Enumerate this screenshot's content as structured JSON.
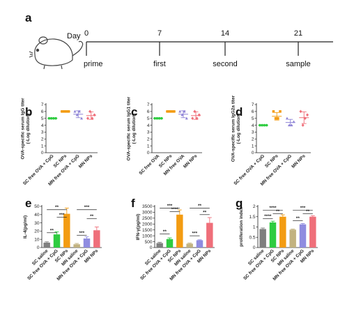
{
  "timeline": {
    "day_label": "Day",
    "points": [
      {
        "day": "0",
        "event": "prime"
      },
      {
        "day": "7",
        "event": "first"
      },
      {
        "day": "14",
        "event": "second"
      },
      {
        "day": "21",
        "event": "sample"
      }
    ]
  },
  "panel_letters": [
    "a",
    "b",
    "c",
    "d",
    "e",
    "f",
    "g"
  ],
  "colors": {
    "green": "#2ecc40",
    "orange": "#f39c12",
    "purple": "#8e83d6",
    "pink": "#ef6f7a",
    "gray": "#7f7f7f",
    "khaki": "#c2b280",
    "light_purple": "#8f8ce0"
  },
  "chart_data": [
    {
      "panel": "b",
      "type": "scatter",
      "ylabel": "OVA-specific serum IgG titer\n(-Log dilution)",
      "ylim": [
        0,
        7
      ],
      "yticks": [
        0,
        1,
        2,
        3,
        4,
        5,
        6,
        7
      ],
      "categories": [
        "SC free OVA + CpG",
        "SC NPs",
        "MN free OVA + CpG",
        "MN NPs"
      ],
      "series": [
        {
          "points": [
            5,
            5,
            5,
            5
          ],
          "mean": 5.0,
          "sd": 0.0
        },
        {
          "points": [
            6,
            6,
            6,
            6
          ],
          "mean": 6.0,
          "sd": 0.0
        },
        {
          "points": [
            6,
            5.5,
            6,
            5
          ],
          "mean": 5.6,
          "sd": 0.5
        },
        {
          "points": [
            5,
            6,
            5,
            5.5
          ],
          "mean": 5.4,
          "sd": 0.55
        }
      ]
    },
    {
      "panel": "c",
      "type": "scatter",
      "ylabel": "OVA-specific serum IgG1 titer\n(-Log dilution)",
      "ylim": [
        0,
        7
      ],
      "yticks": [
        0,
        1,
        2,
        3,
        4,
        5,
        6,
        7
      ],
      "categories": [
        "SC free OVA",
        "SC NPs",
        "MN free OVA",
        "MN NPs"
      ],
      "series": [
        {
          "points": [
            5,
            5,
            5,
            5
          ],
          "mean": 5.0,
          "sd": 0.0
        },
        {
          "points": [
            6,
            6,
            6,
            6
          ],
          "mean": 6.0,
          "sd": 0.0
        },
        {
          "points": [
            6,
            5.5,
            6,
            5
          ],
          "mean": 5.6,
          "sd": 0.5
        },
        {
          "points": [
            5,
            6,
            5,
            5.5
          ],
          "mean": 5.4,
          "sd": 0.55
        }
      ]
    },
    {
      "panel": "d",
      "type": "scatter",
      "ylabel": "OVA-specific serum IgG2a titer\n(-Log dilution)",
      "ylim": [
        0,
        7
      ],
      "yticks": [
        0,
        1,
        2,
        3,
        4,
        5,
        6,
        7
      ],
      "categories": [
        "SC free OVA + CpG",
        "SC NPs",
        "MN free OVA + CpG",
        "MN NPs"
      ],
      "series": [
        {
          "points": [
            4,
            4,
            4,
            4
          ],
          "mean": 4.0,
          "sd": 0.0
        },
        {
          "points": [
            6,
            5,
            5,
            6
          ],
          "mean": 5.3,
          "sd": 0.55
        },
        {
          "points": [
            5,
            4,
            4,
            4.5
          ],
          "mean": 4.4,
          "sd": 0.45
        },
        {
          "points": [
            6,
            4,
            5,
            5.5
          ],
          "mean": 5.1,
          "sd": 0.85
        }
      ]
    },
    {
      "panel": "e",
      "type": "bar",
      "ylabel": "IL-4(pg/ml)",
      "ylim": [
        0,
        50
      ],
      "yticks": [
        0,
        10,
        20,
        30,
        40,
        50
      ],
      "categories": [
        "SC saline",
        "SC free OVA + CpG",
        "SC NPs",
        "MN saline",
        "MN free OVA + CpG",
        "MN NPs"
      ],
      "values": [
        6,
        16,
        41,
        4,
        11,
        21
      ],
      "errors": [
        1,
        3,
        7,
        1,
        2,
        4
      ],
      "significance": [
        {
          "from": 0,
          "to": 1,
          "label": "**",
          "level": 18
        },
        {
          "from": 0,
          "to": 2,
          "label": "**",
          "level": 46
        },
        {
          "from": 1,
          "to": 2,
          "label": "***",
          "level": 37
        },
        {
          "from": 3,
          "to": 4,
          "label": "***",
          "level": 15
        },
        {
          "from": 3,
          "to": 5,
          "label": "***",
          "level": 46
        },
        {
          "from": 4,
          "to": 5,
          "label": "**",
          "level": 35
        }
      ]
    },
    {
      "panel": "f",
      "type": "bar",
      "ylabel": "IFN-γ(pg/ml)",
      "ylim": [
        0,
        3500
      ],
      "yticks": [
        0,
        500,
        1000,
        1500,
        2000,
        2500,
        3000,
        3500
      ],
      "categories": [
        "SC saline",
        "SC free OVA + CpG",
        "SC NPs",
        "MN saline",
        "MN free OVA + CpG",
        "MN NPs"
      ],
      "values": [
        380,
        720,
        2800,
        330,
        620,
        2100
      ],
      "errors": [
        70,
        100,
        400,
        50,
        40,
        450
      ],
      "significance": [
        {
          "from": 0,
          "to": 1,
          "label": "**",
          "level": 1150
        },
        {
          "from": 0,
          "to": 2,
          "label": "***",
          "level": 3350
        },
        {
          "from": 1,
          "to": 2,
          "label": "****",
          "level": 3050
        },
        {
          "from": 3,
          "to": 4,
          "label": "***",
          "level": 1000
        },
        {
          "from": 3,
          "to": 5,
          "label": "**",
          "level": 3350
        },
        {
          "from": 4,
          "to": 5,
          "label": "**",
          "level": 2800
        }
      ]
    },
    {
      "panel": "g",
      "type": "bar",
      "ylabel": "proliferation index",
      "ylim": [
        0,
        2.0
      ],
      "yticks": [
        0,
        0.5,
        1.0,
        1.5,
        2.0
      ],
      "categories": [
        "SC saline",
        "SC free OVA + CpG",
        "SC NPs",
        "MN saline",
        "MN free OVA + CpG",
        "MN NPs"
      ],
      "values": [
        0.9,
        1.22,
        1.5,
        0.87,
        1.13,
        1.5
      ],
      "errors": [
        0.05,
        0.06,
        0.09,
        0.03,
        0.04,
        0.05
      ],
      "significance": [
        {
          "from": 0,
          "to": 1,
          "label": "****",
          "level": 1.4
        },
        {
          "from": 0,
          "to": 2,
          "label": "****",
          "level": 1.82
        },
        {
          "from": 1,
          "to": 2,
          "label": "**",
          "level": 1.65
        },
        {
          "from": 3,
          "to": 4,
          "label": "**",
          "level": 1.3
        },
        {
          "from": 3,
          "to": 5,
          "label": "***",
          "level": 1.82
        },
        {
          "from": 4,
          "to": 5,
          "label": "**",
          "level": 1.65
        }
      ]
    }
  ]
}
